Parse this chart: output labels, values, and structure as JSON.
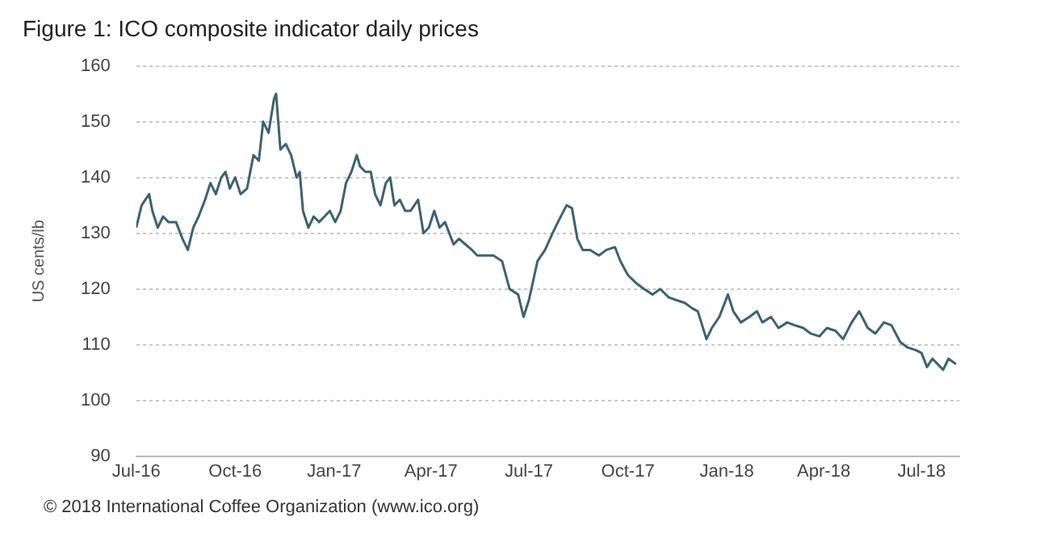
{
  "chart_data": {
    "type": "line",
    "title": "Figure 1: ICO composite indicator daily prices",
    "ylabel": "US cents/lb",
    "annotations": [
      "© 2018 International Coffee Organization (www.ico.org)"
    ],
    "x": [
      "2016-07-01",
      "2016-07-06",
      "2016-07-13",
      "2016-07-16",
      "2016-07-21",
      "2016-07-26",
      "2016-07-31",
      "2016-08-07",
      "2016-08-13",
      "2016-08-18",
      "2016-08-23",
      "2016-08-28",
      "2016-09-03",
      "2016-09-08",
      "2016-09-13",
      "2016-09-18",
      "2016-09-22",
      "2016-09-26",
      "2016-10-01",
      "2016-10-06",
      "2016-10-12",
      "2016-10-18",
      "2016-10-23",
      "2016-10-27",
      "2016-11-01",
      "2016-11-06",
      "2016-11-08",
      "2016-11-12",
      "2016-11-17",
      "2016-11-22",
      "2016-11-27",
      "2016-11-30",
      "2016-12-03",
      "2016-12-08",
      "2016-12-13",
      "2016-12-18",
      "2016-12-23",
      "2016-12-28",
      "2017-01-02",
      "2017-01-07",
      "2017-01-12",
      "2017-01-17",
      "2017-01-22",
      "2017-01-25",
      "2017-01-30",
      "2017-02-04",
      "2017-02-08",
      "2017-02-13",
      "2017-02-18",
      "2017-02-22",
      "2017-02-26",
      "2017-03-03",
      "2017-03-08",
      "2017-03-13",
      "2017-03-20",
      "2017-03-25",
      "2017-03-30",
      "2017-04-04",
      "2017-04-09",
      "2017-04-14",
      "2017-04-22",
      "2017-04-27",
      "2017-05-03",
      "2017-05-09",
      "2017-05-14",
      "2017-05-22",
      "2017-05-29",
      "2017-06-06",
      "2017-06-13",
      "2017-06-21",
      "2017-06-26",
      "2017-07-01",
      "2017-07-09",
      "2017-07-16",
      "2017-07-23",
      "2017-07-28",
      "2017-08-05",
      "2017-08-10",
      "2017-08-15",
      "2017-08-20",
      "2017-08-27",
      "2017-09-04",
      "2017-09-11",
      "2017-09-19",
      "2017-09-24",
      "2017-10-01",
      "2017-10-09",
      "2017-10-16",
      "2017-10-24",
      "2017-10-31",
      "2017-11-08",
      "2017-11-15",
      "2017-11-23",
      "2017-11-30",
      "2017-12-05",
      "2017-12-13",
      "2017-12-18",
      "2017-12-25",
      "2018-01-02",
      "2018-01-07",
      "2018-01-14",
      "2018-01-22",
      "2018-01-29",
      "2018-02-03",
      "2018-02-11",
      "2018-02-18",
      "2018-02-26",
      "2018-03-05",
      "2018-03-13",
      "2018-03-20",
      "2018-03-28",
      "2018-04-04",
      "2018-04-12",
      "2018-04-19",
      "2018-04-27",
      "2018-05-04",
      "2018-05-12",
      "2018-05-19",
      "2018-05-27",
      "2018-06-03",
      "2018-06-11",
      "2018-06-18",
      "2018-06-26",
      "2018-07-01",
      "2018-07-06",
      "2018-07-11",
      "2018-07-16",
      "2018-07-21",
      "2018-07-26",
      "2018-08-02"
    ],
    "series": [
      {
        "color": "#3d6272",
        "values": [
          131,
          135,
          137,
          134,
          131,
          133,
          132,
          132,
          129,
          127,
          131,
          133,
          136,
          139,
          137,
          140,
          141,
          138,
          140,
          137,
          138,
          144,
          143,
          150,
          148,
          154,
          155,
          145,
          146,
          144,
          140,
          141,
          134,
          131,
          133,
          132,
          133,
          134,
          132,
          134,
          139,
          141,
          144,
          142,
          141,
          141,
          137,
          135,
          139,
          140,
          135,
          136,
          134,
          134,
          136,
          130,
          131,
          134,
          131,
          132,
          128,
          129,
          128,
          127,
          126,
          126,
          126,
          125,
          120,
          119,
          115,
          118,
          125,
          127,
          130,
          132,
          135,
          134.5,
          129,
          127,
          127,
          126,
          127,
          127.5,
          125,
          122.5,
          121,
          120,
          119,
          120,
          118.5,
          118,
          117.5,
          116.5,
          116,
          111,
          113,
          115,
          119,
          116,
          114,
          115,
          116,
          114,
          115,
          113,
          114,
          113.5,
          113,
          112,
          111.5,
          113,
          112.5,
          111,
          114,
          116,
          113,
          112,
          114,
          113.5,
          110.5,
          109.5,
          109,
          108.5,
          106,
          107.5,
          106.5,
          105.5,
          107.5,
          106.5
        ]
      }
    ],
    "xlim": [
      "2016-07-01",
      "2018-08-05"
    ],
    "xticks": [
      {
        "value": "2016-07-01",
        "label": "Jul-16"
      },
      {
        "value": "2016-10-01",
        "label": "Oct-16"
      },
      {
        "value": "2017-01-01",
        "label": "Jan-17"
      },
      {
        "value": "2017-04-01",
        "label": "Apr-17"
      },
      {
        "value": "2017-07-01",
        "label": "Jul-17"
      },
      {
        "value": "2017-10-01",
        "label": "Oct-17"
      },
      {
        "value": "2018-01-01",
        "label": "Jan-18"
      },
      {
        "value": "2018-04-01",
        "label": "Apr-18"
      },
      {
        "value": "2018-07-01",
        "label": "Jul-18"
      }
    ],
    "ylim": [
      90,
      160
    ],
    "yticks": [
      90,
      100,
      110,
      120,
      130,
      140,
      150,
      160
    ],
    "grid": "y",
    "legend": false,
    "marker": "none",
    "line_style": "solid"
  }
}
